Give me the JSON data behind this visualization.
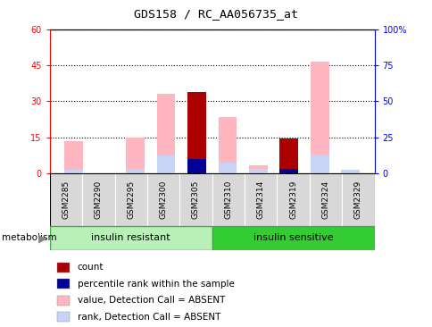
{
  "title": "GDS158 / RC_AA056735_at",
  "samples": [
    "GSM2285",
    "GSM2290",
    "GSM2295",
    "GSM2300",
    "GSM2305",
    "GSM2310",
    "GSM2314",
    "GSM2319",
    "GSM2324",
    "GSM2329"
  ],
  "value_absent": [
    13.5,
    0,
    15.0,
    33.0,
    0,
    23.5,
    3.5,
    0,
    46.5,
    0
  ],
  "rank_absent": [
    1.5,
    0,
    2.0,
    7.5,
    0,
    4.5,
    2.0,
    2.5,
    8.0,
    1.5
  ],
  "count": [
    0,
    0,
    0,
    0,
    34.0,
    0,
    0,
    14.5,
    0,
    0
  ],
  "percentile_rank": [
    0,
    0,
    0,
    0,
    6.0,
    0,
    0,
    2.0,
    0,
    0
  ],
  "ylim_left": [
    0,
    60
  ],
  "ylim_right": [
    0,
    100
  ],
  "yticks_left": [
    0,
    15,
    30,
    45,
    60
  ],
  "yticks_right": [
    0,
    25,
    50,
    75,
    100
  ],
  "ytick_labels_left": [
    "0",
    "15",
    "30",
    "45",
    "60"
  ],
  "ytick_labels_right": [
    "0",
    "25",
    "50",
    "75",
    "100%"
  ],
  "color_count": "#aa0000",
  "color_percentile": "#000099",
  "color_value_absent": "#FFB6C1",
  "color_rank_absent": "#c8d4f5",
  "group1_label": "insulin resistant",
  "group2_label": "insulin sensitive",
  "group1_color": "#b8f0b8",
  "group2_color": "#33cc33",
  "label_metabolism": "metabolism",
  "bar_width": 0.6,
  "n_group1": 5,
  "n_group2": 5,
  "legend_items": [
    [
      "#aa0000",
      "count"
    ],
    [
      "#000099",
      "percentile rank within the sample"
    ],
    [
      "#FFB6C1",
      "value, Detection Call = ABSENT"
    ],
    [
      "#c8d4f5",
      "rank, Detection Call = ABSENT"
    ]
  ]
}
